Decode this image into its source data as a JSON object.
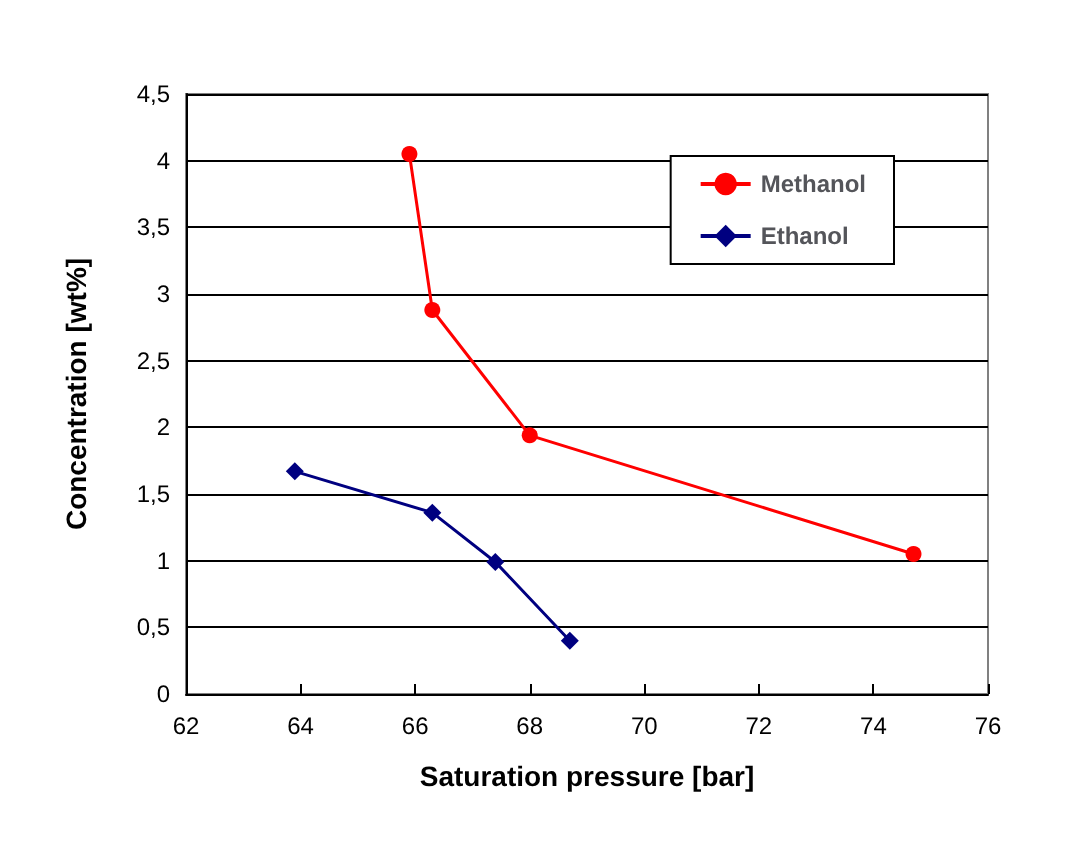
{
  "chart_data": {
    "type": "line",
    "xlabel": "Saturation pressure [bar]",
    "ylabel": "Concentration [wt%]",
    "xlim": [
      62,
      76
    ],
    "xticks": [
      62,
      64,
      66,
      68,
      70,
      72,
      74,
      76
    ],
    "ylim": [
      0,
      4.5
    ],
    "yticks": [
      0,
      {
        "value": 0.5,
        "label": "0,5"
      },
      1,
      {
        "value": 1.5,
        "label": "1,5"
      },
      2,
      {
        "value": 2.5,
        "label": "2,5"
      },
      3,
      {
        "value": 3.5,
        "label": "3,5"
      },
      4,
      {
        "value": 4.5,
        "label": "4,5"
      }
    ],
    "grid": "y",
    "legend": "top right",
    "series": [
      {
        "name": "Methanol",
        "color": "#ff0000",
        "marker": "circle",
        "x": [
          65.9,
          66.3,
          68.0,
          74.7
        ],
        "values": [
          4.05,
          2.88,
          1.94,
          1.05
        ]
      },
      {
        "name": "Ethanol",
        "color": "#000080",
        "marker": "diamond",
        "x": [
          63.9,
          66.3,
          67.4,
          68.7
        ],
        "values": [
          1.67,
          1.36,
          0.99,
          0.4
        ]
      }
    ]
  }
}
